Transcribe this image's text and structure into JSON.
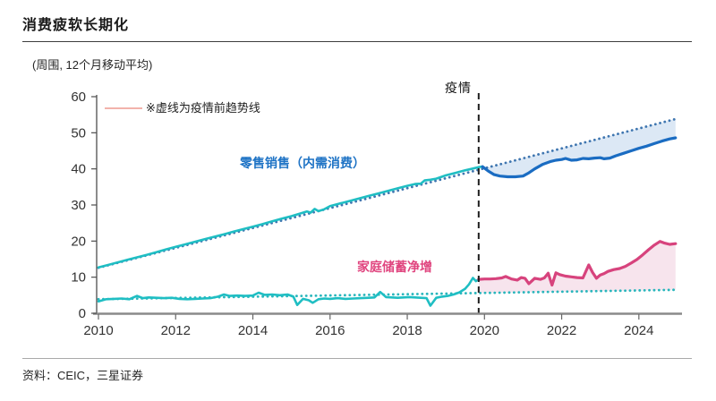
{
  "header": {
    "title": "消费疲软长期化"
  },
  "chart": {
    "unit_label": "(周围, 12个月移动平均)",
    "note": "※虚线为疫情前趋势线",
    "pandemic_label": "疫情",
    "series_labels": {
      "retail": "零售销售（内需消费）",
      "savings": "家庭储蓄净增"
    },
    "colors": {
      "teal": "#1fbec3",
      "blue": "#1a6cc2",
      "blue_dot": "#3f76b0",
      "teal_dot": "#29b6bc",
      "pink": "#d7437d",
      "fill_blue": "#dce8f5",
      "fill_pink": "#f7e4ed",
      "dashed_line": "#1f1f1f",
      "note_marker": "#f2b3ab",
      "axis_y": "#4d4d4d",
      "axis_x": "#8a8a8a",
      "tick_text": "#333333"
    }
  },
  "footer": {
    "source": "资料：CEIC，三星证券"
  },
  "chart_data": {
    "type": "line",
    "title": "消费疲软长期化",
    "unit": "(周围, 12个月移动平均)",
    "note": "※虚线为疫情前趋势线",
    "xlim": [
      2010,
      2025
    ],
    "ylim": [
      0,
      60
    ],
    "x_ticks": [
      2010,
      2012,
      2014,
      2016,
      2018,
      2020,
      2022,
      2024
    ],
    "y_ticks": [
      0,
      10,
      20,
      30,
      40,
      50,
      60
    ],
    "grid": false,
    "pandemic_x": 2019.85,
    "pandemic_label": "疫情",
    "series": [
      {
        "key": "retail_trend",
        "name": "零售销售 疫情前趋势线",
        "style": "dotted",
        "color_key": "blue_dot",
        "width": 2.8,
        "points": [
          [
            2010,
            12.6
          ],
          [
            2024.95,
            53.8
          ]
        ]
      },
      {
        "key": "savings_trend",
        "name": "家庭储蓄 疫情前趋势线",
        "style": "dotted",
        "color_key": "teal_dot",
        "width": 2.8,
        "points": [
          [
            2010,
            3.9
          ],
          [
            2024.95,
            6.5
          ]
        ]
      },
      {
        "key": "retail_pre",
        "name": "零售销售（内需消费）疫情前",
        "style": "solid",
        "color_key": "teal",
        "width": 2.6,
        "points": [
          [
            2010,
            12.7
          ],
          [
            2010.25,
            13.4
          ],
          [
            2010.5,
            14.1
          ],
          [
            2010.75,
            14.8
          ],
          [
            2011,
            15.5
          ],
          [
            2011.25,
            16.2
          ],
          [
            2011.5,
            16.9
          ],
          [
            2011.75,
            17.7
          ],
          [
            2012,
            18.4
          ],
          [
            2012.25,
            19.1
          ],
          [
            2012.5,
            19.8
          ],
          [
            2012.75,
            20.5
          ],
          [
            2013,
            21.2
          ],
          [
            2013.25,
            21.9
          ],
          [
            2013.5,
            22.6
          ],
          [
            2013.75,
            23.3
          ],
          [
            2014,
            24.0
          ],
          [
            2014.25,
            24.7
          ],
          [
            2014.5,
            25.5
          ],
          [
            2014.75,
            26.2
          ],
          [
            2015,
            26.9
          ],
          [
            2015.25,
            27.7
          ],
          [
            2015.4,
            28.2
          ],
          [
            2015.5,
            27.9
          ],
          [
            2015.6,
            28.9
          ],
          [
            2015.7,
            28.3
          ],
          [
            2015.85,
            28.8
          ],
          [
            2016,
            29.7
          ],
          [
            2016.25,
            30.4
          ],
          [
            2016.5,
            31.1
          ],
          [
            2016.75,
            31.8
          ],
          [
            2017,
            32.5
          ],
          [
            2017.25,
            33.2
          ],
          [
            2017.5,
            33.9
          ],
          [
            2017.75,
            34.6
          ],
          [
            2018,
            35.3
          ],
          [
            2018.2,
            35.8
          ],
          [
            2018.35,
            35.9
          ],
          [
            2018.45,
            36.8
          ],
          [
            2018.6,
            37.0
          ],
          [
            2018.75,
            37.3
          ],
          [
            2019,
            38.2
          ],
          [
            2019.25,
            38.9
          ],
          [
            2019.5,
            39.6
          ],
          [
            2019.7,
            40.1
          ],
          [
            2019.85,
            40.5
          ],
          [
            2019.95,
            40.6
          ]
        ]
      },
      {
        "key": "retail_post",
        "name": "零售销售（内需消费）疫情后",
        "style": "solid",
        "color_key": "blue",
        "width": 3.2,
        "points": [
          [
            2019.95,
            40.6
          ],
          [
            2020.1,
            39.4
          ],
          [
            2020.25,
            38.4
          ],
          [
            2020.4,
            38.0
          ],
          [
            2020.6,
            37.8
          ],
          [
            2020.8,
            37.8
          ],
          [
            2021.0,
            38.0
          ],
          [
            2021.15,
            38.9
          ],
          [
            2021.3,
            40.0
          ],
          [
            2021.5,
            41.2
          ],
          [
            2021.7,
            42.0
          ],
          [
            2021.85,
            42.4
          ],
          [
            2022.0,
            42.6
          ],
          [
            2022.1,
            42.9
          ],
          [
            2022.25,
            42.4
          ],
          [
            2022.4,
            42.5
          ],
          [
            2022.55,
            42.9
          ],
          [
            2022.7,
            42.8
          ],
          [
            2022.85,
            43.0
          ],
          [
            2023.0,
            43.1
          ],
          [
            2023.1,
            42.8
          ],
          [
            2023.25,
            43.0
          ],
          [
            2023.4,
            43.6
          ],
          [
            2023.6,
            44.3
          ],
          [
            2023.8,
            45.0
          ],
          [
            2024.0,
            45.7
          ],
          [
            2024.2,
            46.3
          ],
          [
            2024.4,
            47.0
          ],
          [
            2024.6,
            47.7
          ],
          [
            2024.8,
            48.3
          ],
          [
            2024.95,
            48.6
          ]
        ]
      },
      {
        "key": "savings_pre",
        "name": "家庭储蓄净增 疫情前",
        "style": "solid",
        "color_key": "teal",
        "width": 2.6,
        "points": [
          [
            2010,
            3.3
          ],
          [
            2010.2,
            3.9
          ],
          [
            2010.4,
            4.0
          ],
          [
            2010.6,
            4.1
          ],
          [
            2010.8,
            3.9
          ],
          [
            2011.0,
            4.8
          ],
          [
            2011.15,
            4.2
          ],
          [
            2011.3,
            4.4
          ],
          [
            2011.5,
            4.3
          ],
          [
            2011.7,
            4.2
          ],
          [
            2011.9,
            4.3
          ],
          [
            2012.1,
            4.0
          ],
          [
            2012.3,
            3.9
          ],
          [
            2012.5,
            4.0
          ],
          [
            2012.7,
            4.1
          ],
          [
            2012.9,
            4.2
          ],
          [
            2013.1,
            4.6
          ],
          [
            2013.25,
            5.2
          ],
          [
            2013.4,
            4.8
          ],
          [
            2013.6,
            4.9
          ],
          [
            2013.8,
            4.8
          ],
          [
            2014.0,
            4.9
          ],
          [
            2014.15,
            5.7
          ],
          [
            2014.3,
            5.1
          ],
          [
            2014.5,
            5.2
          ],
          [
            2014.7,
            5.0
          ],
          [
            2014.9,
            5.2
          ],
          [
            2015.05,
            4.6
          ],
          [
            2015.15,
            2.3
          ],
          [
            2015.3,
            4.0
          ],
          [
            2015.45,
            3.6
          ],
          [
            2015.55,
            2.9
          ],
          [
            2015.7,
            3.9
          ],
          [
            2015.85,
            4.1
          ],
          [
            2016.0,
            4.0
          ],
          [
            2016.2,
            4.2
          ],
          [
            2016.4,
            4.0
          ],
          [
            2016.6,
            4.1
          ],
          [
            2016.8,
            4.2
          ],
          [
            2017.0,
            4.3
          ],
          [
            2017.15,
            4.4
          ],
          [
            2017.3,
            5.9
          ],
          [
            2017.45,
            4.5
          ],
          [
            2017.6,
            4.4
          ],
          [
            2017.75,
            4.3
          ],
          [
            2017.9,
            4.4
          ],
          [
            2018.05,
            4.5
          ],
          [
            2018.2,
            4.4
          ],
          [
            2018.35,
            4.3
          ],
          [
            2018.5,
            4.2
          ],
          [
            2018.6,
            2.1
          ],
          [
            2018.75,
            4.3
          ],
          [
            2018.9,
            4.6
          ],
          [
            2019.05,
            4.8
          ],
          [
            2019.2,
            5.2
          ],
          [
            2019.35,
            5.8
          ],
          [
            2019.5,
            6.8
          ],
          [
            2019.6,
            8.0
          ],
          [
            2019.7,
            9.8
          ],
          [
            2019.78,
            8.9
          ],
          [
            2019.85,
            9.4
          ]
        ]
      },
      {
        "key": "savings_post",
        "name": "家庭储蓄净增 疫情后",
        "style": "solid",
        "color_key": "pink",
        "width": 3.2,
        "points": [
          [
            2019.85,
            9.4
          ],
          [
            2020.0,
            9.5
          ],
          [
            2020.15,
            9.5
          ],
          [
            2020.3,
            9.6
          ],
          [
            2020.45,
            9.8
          ],
          [
            2020.55,
            10.2
          ],
          [
            2020.7,
            9.5
          ],
          [
            2020.85,
            9.2
          ],
          [
            2020.95,
            9.9
          ],
          [
            2021.05,
            9.7
          ],
          [
            2021.15,
            8.2
          ],
          [
            2021.3,
            9.7
          ],
          [
            2021.45,
            9.4
          ],
          [
            2021.55,
            9.8
          ],
          [
            2021.65,
            11.1
          ],
          [
            2021.75,
            7.8
          ],
          [
            2021.85,
            11.2
          ],
          [
            2021.95,
            10.7
          ],
          [
            2022.1,
            10.3
          ],
          [
            2022.25,
            10.1
          ],
          [
            2022.4,
            9.9
          ],
          [
            2022.55,
            9.8
          ],
          [
            2022.7,
            13.4
          ],
          [
            2022.8,
            11.3
          ],
          [
            2022.9,
            9.7
          ],
          [
            2023.0,
            10.6
          ],
          [
            2023.1,
            11.0
          ],
          [
            2023.2,
            11.6
          ],
          [
            2023.35,
            12.1
          ],
          [
            2023.5,
            12.4
          ],
          [
            2023.65,
            13.0
          ],
          [
            2023.8,
            13.9
          ],
          [
            2023.95,
            14.9
          ],
          [
            2024.1,
            16.2
          ],
          [
            2024.25,
            17.6
          ],
          [
            2024.4,
            18.9
          ],
          [
            2024.55,
            19.9
          ],
          [
            2024.65,
            19.5
          ],
          [
            2024.8,
            19.1
          ],
          [
            2024.95,
            19.3
          ]
        ]
      }
    ],
    "fills": [
      {
        "top": "retail_trend",
        "bottom": "retail_post",
        "color_key": "fill_blue"
      },
      {
        "top": "savings_post",
        "bottom": "savings_trend",
        "color_key": "fill_pink"
      }
    ],
    "legend_position": "top-left-inside"
  }
}
